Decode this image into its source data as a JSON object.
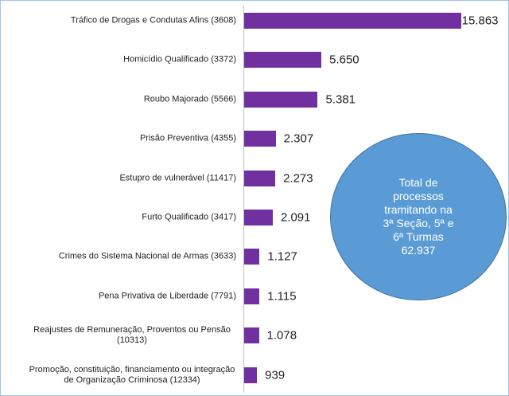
{
  "chart_data": {
    "type": "bar",
    "orientation": "horizontal",
    "categories": [
      "Tráfico de Drogas e Condutas Afins (3608)",
      "Homicídio Qualificado (3372)",
      "Roubo Majorado (5566)",
      "Prisão Preventiva (4355)",
      "Estupro de vulnerável (11417)",
      "Furto Qualificado (3417)",
      "Crimes do Sistema Nacional de Armas (3633)",
      "Pena Privativa de Liberdade (7791)",
      "Reajustes de Remuneração, Proventos ou Pensão (10313)",
      "Promoção, constituição, financiamento ou integração de Organização Criminosa (12334)"
    ],
    "values": [
      15863,
      5650,
      5381,
      2307,
      2273,
      2091,
      1127,
      1115,
      1078,
      939
    ],
    "value_labels": [
      "15.863",
      "5.650",
      "5.381",
      "2.307",
      "2.273",
      "2.091",
      "1.127",
      "1.115",
      "1.078",
      "939"
    ],
    "color": "#7030a0",
    "xlim": [
      0,
      16000
    ],
    "annotation": [
      "Total de",
      "processos",
      "tramitando na",
      "3ª Seção, 5ª e",
      "6ª Turmas",
      "62.937"
    ]
  }
}
